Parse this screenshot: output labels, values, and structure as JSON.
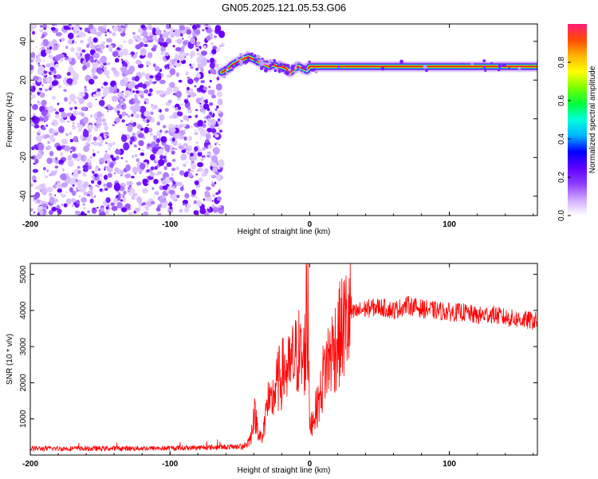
{
  "chart_data": [
    {
      "type": "heatmap",
      "title": "GN05.2025.121.05.53.G06",
      "xlabel": "Height of straight line (km)",
      "ylabel": "Frequency (Hz)",
      "xlim": [
        -200,
        163
      ],
      "ylim": [
        -50,
        49
      ],
      "xticks": [
        -200,
        -100,
        0,
        100
      ],
      "yticks": [
        -40,
        -20,
        0,
        20,
        40
      ],
      "noise_region_x": [
        -200,
        -63
      ],
      "carrier": {
        "x": [
          -63,
          -58,
          -55,
          -50,
          -47,
          -44,
          -41,
          -38,
          -35,
          -32,
          -29,
          -26,
          -23,
          -20,
          -17,
          -14,
          -11,
          -8,
          -5,
          -2,
          0,
          5,
          50,
          100,
          130,
          163
        ],
        "frequency_hz": [
          24,
          26,
          28,
          30,
          31,
          32,
          31,
          30,
          29,
          28,
          27,
          28,
          27,
          27,
          26,
          24,
          26,
          27,
          26,
          25,
          27,
          27,
          27,
          27,
          27,
          27
        ]
      },
      "colorbar": {
        "label": "Normalized spectral amplitude",
        "range": [
          0,
          1
        ],
        "ticks": [
          "0.0",
          "0.2",
          "0.4",
          "0.6",
          "0.8"
        ],
        "colors": [
          "#ffffff",
          "#cfa8ff",
          "#8d3bff",
          "#5d00ff",
          "#0000ff",
          "#00b4ff",
          "#00ffdc",
          "#00ff3c",
          "#78ff00",
          "#ffff00",
          "#ffb400",
          "#ff4b00",
          "#ff1e78"
        ]
      }
    },
    {
      "type": "line",
      "title": "",
      "xlabel": "Height of straight line (km)",
      "ylabel": "SNR (10 * v/v)",
      "xlim": [
        -200,
        163
      ],
      "ylim": [
        0,
        5300
      ],
      "xticks": [
        -200,
        -100,
        0,
        100
      ],
      "yticks": [
        1000,
        2000,
        3000,
        4000,
        5000
      ],
      "color": "#ff0000",
      "x": [
        -200,
        -150,
        -100,
        -60,
        -50,
        -45,
        -42,
        -40,
        -38,
        -36,
        -34,
        -32,
        -30,
        -28,
        -25,
        -22,
        -20,
        -18,
        -15,
        -12,
        -10,
        -8,
        -5,
        -3,
        -1,
        0,
        2,
        5,
        8,
        10,
        15,
        20,
        25,
        30,
        40,
        50,
        60,
        70,
        80,
        90,
        100,
        110,
        120,
        130,
        140,
        150,
        163
      ],
      "y": [
        180,
        180,
        190,
        220,
        230,
        300,
        500,
        1200,
        900,
        600,
        400,
        1000,
        1500,
        1300,
        1800,
        2100,
        2200,
        2400,
        2300,
        2600,
        2700,
        2900,
        2500,
        3000,
        3400,
        700,
        1000,
        1300,
        1700,
        2300,
        2800,
        3200,
        3600,
        3900,
        4050,
        4100,
        4000,
        4150,
        4050,
        4000,
        3950,
        3950,
        3850,
        3900,
        3800,
        3750,
        3700
      ]
    }
  ]
}
